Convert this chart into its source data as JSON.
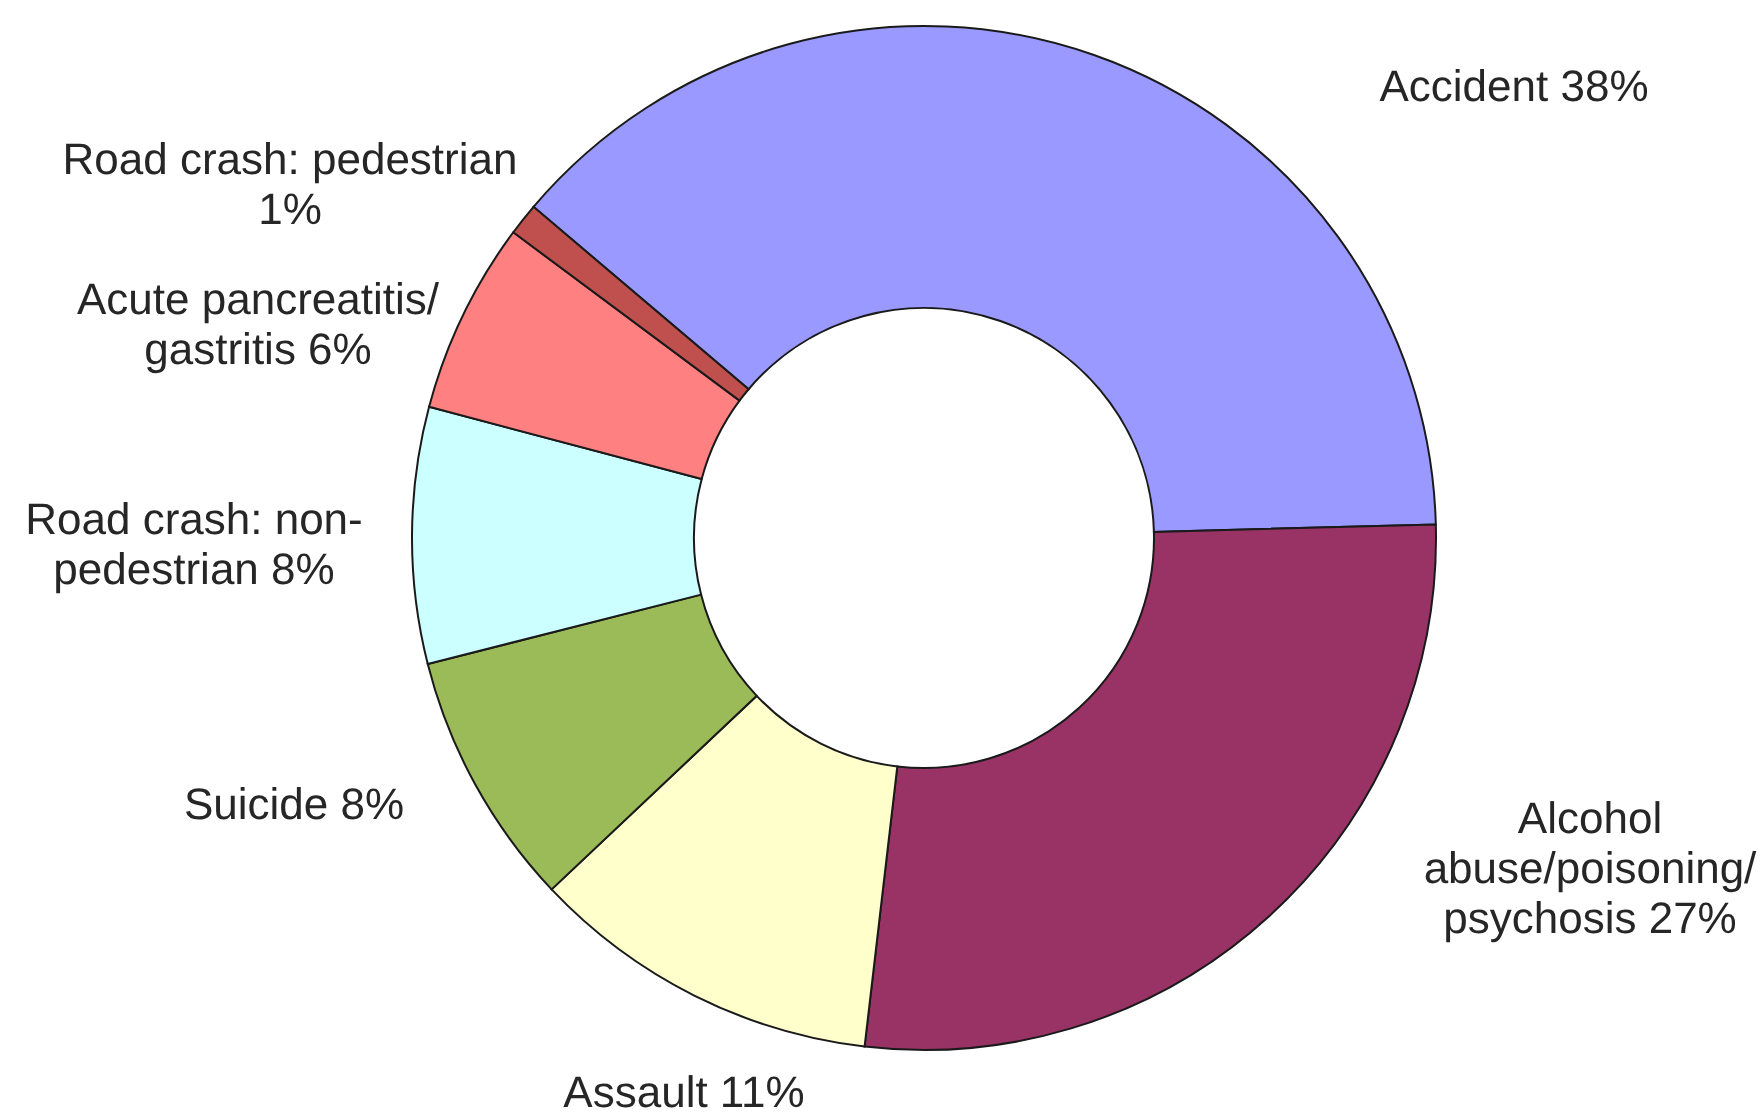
{
  "chart_data": {
    "type": "donut",
    "categories": [
      "Accident",
      "Alcohol abuse/poisoning/ psychosis",
      "Assault",
      "Suicide",
      "Road crash: non-pedestrian",
      "Acute pancreatitis/ gastritis",
      "Road crash: pedestrian"
    ],
    "values": [
      38,
      27,
      11,
      8,
      8,
      6,
      1
    ],
    "colors": [
      "#9999ff",
      "#993366",
      "#ffffcc",
      "#9bbb59",
      "#ccffff",
      "#ff8080",
      "#c0504d"
    ],
    "value_labels": [
      "38%",
      "27%",
      "11%",
      "8%",
      "8%",
      "6%",
      "1%"
    ]
  }
}
